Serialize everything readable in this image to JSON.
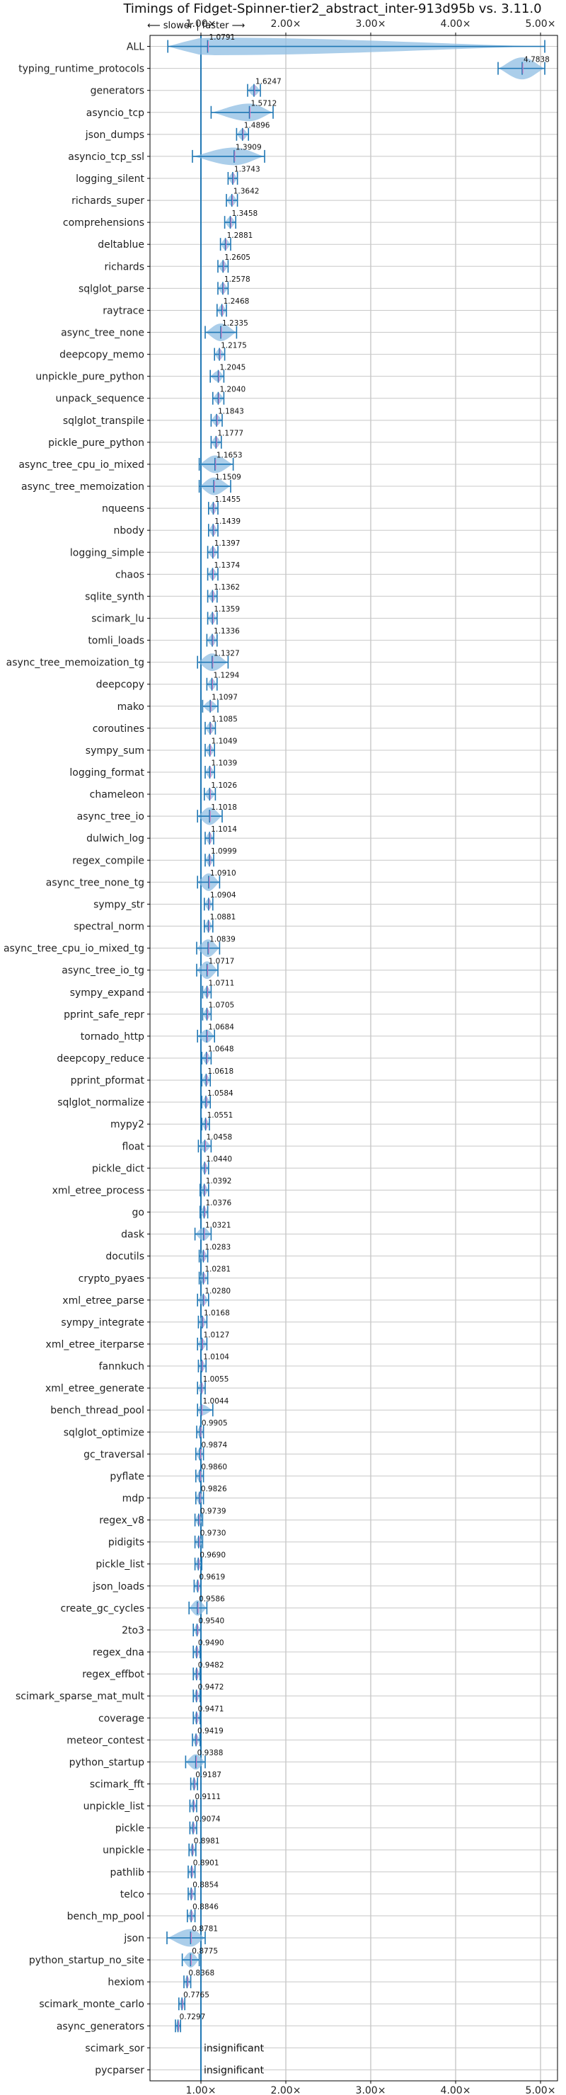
{
  "chart_data": {
    "type": "violin",
    "title": "Timings of Fidget-Spinner-tier2_abstract_inter-913d95b vs. 3.11.0",
    "direction_hint": "⟵ slower | faster ⟶",
    "xlim": [
      0.4,
      5.2
    ],
    "xticks": [
      1,
      2,
      3,
      4,
      5
    ],
    "xtick_labels": [
      "1.00×",
      "2.00×",
      "3.00×",
      "4.00×",
      "5.00×"
    ],
    "reference_line": 1.0,
    "grid": true,
    "colors": {
      "violin": "#8fbde3",
      "line": "#1f77b4",
      "median": "#e377c2"
    },
    "insignificant_label": "insignificant",
    "benchmarks": [
      {
        "name": "ALL",
        "value": 1.0791,
        "min": 0.61,
        "max": 5.05,
        "mean": 1.0791,
        "width": 0.8
      },
      {
        "name": "typing_runtime_protocols",
        "value": 4.7838,
        "min": 4.5,
        "max": 5.05,
        "mean": 4.7838,
        "width": 1.0
      },
      {
        "name": "generators",
        "value": 1.6247,
        "min": 1.55,
        "max": 1.7,
        "mean": 1.6247,
        "width": 0.5
      },
      {
        "name": "asyncio_tcp",
        "value": 1.5712,
        "min": 1.12,
        "max": 1.85,
        "mean": 1.5712,
        "width": 0.8
      },
      {
        "name": "json_dumps",
        "value": 1.4896,
        "min": 1.42,
        "max": 1.56,
        "mean": 1.4896,
        "width": 0.5
      },
      {
        "name": "asyncio_tcp_ssl",
        "value": 1.3909,
        "min": 0.9,
        "max": 1.75,
        "mean": 1.3909,
        "width": 0.8
      },
      {
        "name": "logging_silent",
        "value": 1.3743,
        "min": 1.32,
        "max": 1.43,
        "mean": 1.3743,
        "width": 0.5
      },
      {
        "name": "richards_super",
        "value": 1.3642,
        "min": 1.3,
        "max": 1.43,
        "mean": 1.3642,
        "width": 0.5
      },
      {
        "name": "comprehensions",
        "value": 1.3458,
        "min": 1.28,
        "max": 1.41,
        "mean": 1.3458,
        "width": 0.5
      },
      {
        "name": "deltablue",
        "value": 1.2881,
        "min": 1.23,
        "max": 1.35,
        "mean": 1.2881,
        "width": 0.5
      },
      {
        "name": "richards",
        "value": 1.2605,
        "min": 1.2,
        "max": 1.32,
        "mean": 1.2605,
        "width": 0.5
      },
      {
        "name": "sqlglot_parse",
        "value": 1.2578,
        "min": 1.2,
        "max": 1.32,
        "mean": 1.2578,
        "width": 0.5
      },
      {
        "name": "raytrace",
        "value": 1.2468,
        "min": 1.19,
        "max": 1.3,
        "mean": 1.2468,
        "width": 0.5
      },
      {
        "name": "async_tree_none",
        "value": 1.2335,
        "min": 1.05,
        "max": 1.42,
        "mean": 1.2335,
        "width": 0.8
      },
      {
        "name": "deepcopy_memo",
        "value": 1.2175,
        "min": 1.16,
        "max": 1.28,
        "mean": 1.2175,
        "width": 0.5
      },
      {
        "name": "unpickle_pure_python",
        "value": 1.2045,
        "min": 1.11,
        "max": 1.27,
        "mean": 1.2045,
        "width": 0.5
      },
      {
        "name": "unpack_sequence",
        "value": 1.204,
        "min": 1.14,
        "max": 1.27,
        "mean": 1.204,
        "width": 0.5
      },
      {
        "name": "sqlglot_transpile",
        "value": 1.1843,
        "min": 1.12,
        "max": 1.25,
        "mean": 1.1843,
        "width": 0.5
      },
      {
        "name": "pickle_pure_python",
        "value": 1.1777,
        "min": 1.12,
        "max": 1.24,
        "mean": 1.1777,
        "width": 0.5
      },
      {
        "name": "async_tree_cpu_io_mixed",
        "value": 1.1653,
        "min": 0.98,
        "max": 1.38,
        "mean": 1.1653,
        "width": 0.8
      },
      {
        "name": "async_tree_memoization",
        "value": 1.1509,
        "min": 0.98,
        "max": 1.35,
        "mean": 1.1509,
        "width": 0.8
      },
      {
        "name": "nqueens",
        "value": 1.1455,
        "min": 1.09,
        "max": 1.2,
        "mean": 1.1455,
        "width": 0.5
      },
      {
        "name": "nbody",
        "value": 1.1439,
        "min": 1.09,
        "max": 1.2,
        "mean": 1.1439,
        "width": 0.5
      },
      {
        "name": "logging_simple",
        "value": 1.1397,
        "min": 1.08,
        "max": 1.2,
        "mean": 1.1397,
        "width": 0.5
      },
      {
        "name": "chaos",
        "value": 1.1374,
        "min": 1.08,
        "max": 1.2,
        "mean": 1.1374,
        "width": 0.5
      },
      {
        "name": "sqlite_synth",
        "value": 1.1362,
        "min": 1.08,
        "max": 1.19,
        "mean": 1.1362,
        "width": 0.5
      },
      {
        "name": "scimark_lu",
        "value": 1.1359,
        "min": 1.08,
        "max": 1.19,
        "mean": 1.1359,
        "width": 0.5
      },
      {
        "name": "tomli_loads",
        "value": 1.1336,
        "min": 1.07,
        "max": 1.19,
        "mean": 1.1336,
        "width": 0.5
      },
      {
        "name": "async_tree_memoization_tg",
        "value": 1.1327,
        "min": 0.96,
        "max": 1.32,
        "mean": 1.1327,
        "width": 0.8
      },
      {
        "name": "deepcopy",
        "value": 1.1294,
        "min": 1.07,
        "max": 1.19,
        "mean": 1.1294,
        "width": 0.5
      },
      {
        "name": "mako",
        "value": 1.1097,
        "min": 1.02,
        "max": 1.2,
        "mean": 1.1097,
        "width": 0.5
      },
      {
        "name": "coroutines",
        "value": 1.1085,
        "min": 1.05,
        "max": 1.17,
        "mean": 1.1085,
        "width": 0.5
      },
      {
        "name": "sympy_sum",
        "value": 1.1049,
        "min": 1.05,
        "max": 1.16,
        "mean": 1.1049,
        "width": 0.5
      },
      {
        "name": "logging_format",
        "value": 1.1039,
        "min": 1.05,
        "max": 1.16,
        "mean": 1.1039,
        "width": 0.5
      },
      {
        "name": "chameleon",
        "value": 1.1026,
        "min": 1.04,
        "max": 1.17,
        "mean": 1.1026,
        "width": 0.5
      },
      {
        "name": "async_tree_io",
        "value": 1.1018,
        "min": 0.96,
        "max": 1.25,
        "mean": 1.1018,
        "width": 0.8
      },
      {
        "name": "dulwich_log",
        "value": 1.1014,
        "min": 1.05,
        "max": 1.15,
        "mean": 1.1014,
        "width": 0.5
      },
      {
        "name": "regex_compile",
        "value": 1.0999,
        "min": 1.05,
        "max": 1.15,
        "mean": 1.0999,
        "width": 0.5
      },
      {
        "name": "async_tree_none_tg",
        "value": 1.091,
        "min": 0.96,
        "max": 1.22,
        "mean": 1.091,
        "width": 0.8
      },
      {
        "name": "sympy_str",
        "value": 1.0904,
        "min": 1.04,
        "max": 1.14,
        "mean": 1.0904,
        "width": 0.5
      },
      {
        "name": "spectral_norm",
        "value": 1.0881,
        "min": 1.04,
        "max": 1.14,
        "mean": 1.0881,
        "width": 0.5
      },
      {
        "name": "async_tree_cpu_io_mixed_tg",
        "value": 1.0839,
        "min": 0.95,
        "max": 1.22,
        "mean": 1.0839,
        "width": 0.8
      },
      {
        "name": "async_tree_io_tg",
        "value": 1.0717,
        "min": 0.95,
        "max": 1.2,
        "mean": 1.0717,
        "width": 0.8
      },
      {
        "name": "sympy_expand",
        "value": 1.0711,
        "min": 1.02,
        "max": 1.12,
        "mean": 1.0711,
        "width": 0.5
      },
      {
        "name": "pprint_safe_repr",
        "value": 1.0705,
        "min": 1.02,
        "max": 1.12,
        "mean": 1.0705,
        "width": 0.5
      },
      {
        "name": "tornado_http",
        "value": 1.0684,
        "min": 0.96,
        "max": 1.16,
        "mean": 1.0684,
        "width": 0.6
      },
      {
        "name": "deepcopy_reduce",
        "value": 1.0648,
        "min": 1.01,
        "max": 1.12,
        "mean": 1.0648,
        "width": 0.5
      },
      {
        "name": "pprint_pformat",
        "value": 1.0618,
        "min": 1.01,
        "max": 1.11,
        "mean": 1.0618,
        "width": 0.5
      },
      {
        "name": "sqlglot_normalize",
        "value": 1.0584,
        "min": 1.01,
        "max": 1.11,
        "mean": 1.0584,
        "width": 0.5
      },
      {
        "name": "mypy2",
        "value": 1.0551,
        "min": 1.01,
        "max": 1.1,
        "mean": 1.0551,
        "width": 0.5
      },
      {
        "name": "float",
        "value": 1.0458,
        "min": 0.97,
        "max": 1.12,
        "mean": 1.0458,
        "width": 0.5
      },
      {
        "name": "pickle_dict",
        "value": 1.044,
        "min": 1.0,
        "max": 1.09,
        "mean": 1.044,
        "width": 0.5
      },
      {
        "name": "xml_etree_process",
        "value": 1.0392,
        "min": 0.99,
        "max": 1.09,
        "mean": 1.0392,
        "width": 0.5
      },
      {
        "name": "go",
        "value": 1.0376,
        "min": 0.99,
        "max": 1.08,
        "mean": 1.0376,
        "width": 0.5
      },
      {
        "name": "dask",
        "value": 1.0321,
        "min": 0.93,
        "max": 1.12,
        "mean": 1.0321,
        "width": 0.6
      },
      {
        "name": "docutils",
        "value": 1.0283,
        "min": 0.98,
        "max": 1.08,
        "mean": 1.0283,
        "width": 0.5
      },
      {
        "name": "crypto_pyaes",
        "value": 1.0281,
        "min": 0.98,
        "max": 1.08,
        "mean": 1.0281,
        "width": 0.5
      },
      {
        "name": "xml_etree_parse",
        "value": 1.028,
        "min": 0.96,
        "max": 1.09,
        "mean": 1.028,
        "width": 0.5
      },
      {
        "name": "sympy_integrate",
        "value": 1.0168,
        "min": 0.97,
        "max": 1.07,
        "mean": 1.0168,
        "width": 0.5
      },
      {
        "name": "xml_etree_iterparse",
        "value": 1.0127,
        "min": 0.96,
        "max": 1.07,
        "mean": 1.0127,
        "width": 0.5
      },
      {
        "name": "fannkuch",
        "value": 1.0104,
        "min": 0.97,
        "max": 1.06,
        "mean": 1.0104,
        "width": 0.5
      },
      {
        "name": "xml_etree_generate",
        "value": 1.0055,
        "min": 0.96,
        "max": 1.05,
        "mean": 1.0055,
        "width": 0.5
      },
      {
        "name": "bench_thread_pool",
        "value": 1.0044,
        "min": 0.96,
        "max": 1.14,
        "mean": 1.0044,
        "width": 0.5
      },
      {
        "name": "sqlglot_optimize",
        "value": 0.9905,
        "min": 0.95,
        "max": 1.03,
        "mean": 0.9905,
        "width": 0.5
      },
      {
        "name": "gc_traversal",
        "value": 0.9874,
        "min": 0.94,
        "max": 1.03,
        "mean": 0.9874,
        "width": 0.5
      },
      {
        "name": "pyflate",
        "value": 0.986,
        "min": 0.94,
        "max": 1.03,
        "mean": 0.986,
        "width": 0.5
      },
      {
        "name": "mdp",
        "value": 0.9826,
        "min": 0.94,
        "max": 1.03,
        "mean": 0.9826,
        "width": 0.5
      },
      {
        "name": "regex_v8",
        "value": 0.9739,
        "min": 0.93,
        "max": 1.02,
        "mean": 0.9739,
        "width": 0.5
      },
      {
        "name": "pidigits",
        "value": 0.973,
        "min": 0.93,
        "max": 1.02,
        "mean": 0.973,
        "width": 0.5
      },
      {
        "name": "pickle_list",
        "value": 0.969,
        "min": 0.93,
        "max": 1.01,
        "mean": 0.969,
        "width": 0.5
      },
      {
        "name": "json_loads",
        "value": 0.9619,
        "min": 0.92,
        "max": 1.0,
        "mean": 0.9619,
        "width": 0.5
      },
      {
        "name": "create_gc_cycles",
        "value": 0.9586,
        "min": 0.86,
        "max": 1.07,
        "mean": 0.9586,
        "width": 0.7
      },
      {
        "name": "2to3",
        "value": 0.954,
        "min": 0.91,
        "max": 1.0,
        "mean": 0.954,
        "width": 0.5
      },
      {
        "name": "regex_dna",
        "value": 0.949,
        "min": 0.91,
        "max": 0.99,
        "mean": 0.949,
        "width": 0.5
      },
      {
        "name": "regex_effbot",
        "value": 0.9482,
        "min": 0.91,
        "max": 0.99,
        "mean": 0.9482,
        "width": 0.5
      },
      {
        "name": "scimark_sparse_mat_mult",
        "value": 0.9472,
        "min": 0.91,
        "max": 0.99,
        "mean": 0.9472,
        "width": 0.5
      },
      {
        "name": "coverage",
        "value": 0.9471,
        "min": 0.91,
        "max": 0.99,
        "mean": 0.9471,
        "width": 0.5
      },
      {
        "name": "meteor_contest",
        "value": 0.9419,
        "min": 0.9,
        "max": 0.99,
        "mean": 0.9419,
        "width": 0.5
      },
      {
        "name": "python_startup",
        "value": 0.9388,
        "min": 0.82,
        "max": 1.05,
        "mean": 0.9388,
        "width": 0.7
      },
      {
        "name": "scimark_fft",
        "value": 0.9187,
        "min": 0.88,
        "max": 0.96,
        "mean": 0.9187,
        "width": 0.5
      },
      {
        "name": "unpickle_list",
        "value": 0.9111,
        "min": 0.87,
        "max": 0.95,
        "mean": 0.9111,
        "width": 0.5
      },
      {
        "name": "pickle",
        "value": 0.9074,
        "min": 0.87,
        "max": 0.95,
        "mean": 0.9074,
        "width": 0.5
      },
      {
        "name": "unpickle",
        "value": 0.8981,
        "min": 0.86,
        "max": 0.94,
        "mean": 0.8981,
        "width": 0.5
      },
      {
        "name": "pathlib",
        "value": 0.8901,
        "min": 0.85,
        "max": 0.93,
        "mean": 0.8901,
        "width": 0.5
      },
      {
        "name": "telco",
        "value": 0.8854,
        "min": 0.85,
        "max": 0.93,
        "mean": 0.8854,
        "width": 0.5
      },
      {
        "name": "bench_mp_pool",
        "value": 0.8846,
        "min": 0.84,
        "max": 0.93,
        "mean": 0.8846,
        "width": 0.5
      },
      {
        "name": "json",
        "value": 0.8781,
        "min": 0.6,
        "max": 1.05,
        "mean": 0.8781,
        "width": 0.8
      },
      {
        "name": "python_startup_no_site",
        "value": 0.8775,
        "min": 0.78,
        "max": 0.98,
        "mean": 0.8775,
        "width": 0.7
      },
      {
        "name": "hexiom",
        "value": 0.8368,
        "min": 0.8,
        "max": 0.88,
        "mean": 0.8368,
        "width": 0.5
      },
      {
        "name": "scimark_monte_carlo",
        "value": 0.7765,
        "min": 0.74,
        "max": 0.81,
        "mean": 0.7765,
        "width": 0.5
      },
      {
        "name": "async_generators",
        "value": 0.7297,
        "min": 0.7,
        "max": 0.76,
        "mean": 0.7297,
        "width": 0.5
      },
      {
        "name": "scimark_sor",
        "value": null,
        "significant": false
      },
      {
        "name": "pycparser",
        "value": null,
        "significant": false
      }
    ]
  }
}
